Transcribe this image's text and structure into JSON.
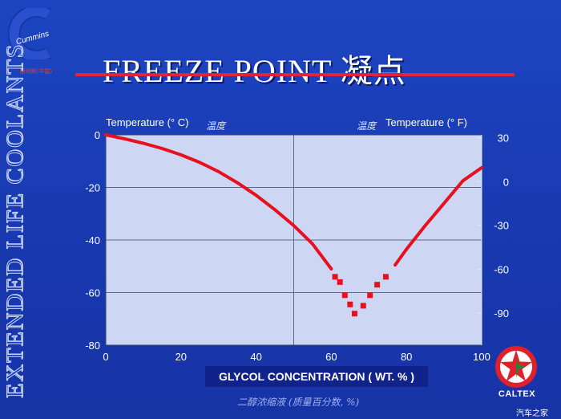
{
  "slide": {
    "title": "FREEZE POINT 凝点",
    "side_title": "EXTENDED LIFE COOLANTS",
    "brand_left_sub": "康明斯(中国)",
    "brand_right": "CALTEX",
    "watermark": "汽车之家",
    "colors": {
      "background": "#1a3cb4",
      "accent_line": "#e0243a",
      "curve": "#e8101e",
      "plot_area": "#cdd6f2"
    }
  },
  "chart_data": {
    "type": "line",
    "xlabel": "GLYCOL CONCENTRATION ( WT. % )",
    "xlabel_cn": "二醇浓缩液 (质量百分数, %)",
    "ylabel_left": "Temperature (° C)",
    "ylabel_left_cn": "温度",
    "ylabel_right": "Temperature (° F)",
    "ylabel_right_cn": "温度",
    "xlim": [
      0,
      100
    ],
    "ylim": [
      -80,
      0
    ],
    "x_ticks": [
      "0",
      "20",
      "40",
      "60",
      "80",
      "100"
    ],
    "y_ticks_left": [
      "0",
      "-20",
      "-40",
      "-60",
      "-80"
    ],
    "y_ticks_right": [
      "30",
      "0",
      "-30",
      "-60",
      "-90"
    ],
    "y_ticks_right_values_c": [
      -1.1,
      -17.8,
      -34.4,
      -51.1,
      -67.8
    ],
    "grid": true,
    "series": [
      {
        "style": "solid-left",
        "x": [
          0,
          5,
          10,
          15,
          20,
          25,
          30,
          35,
          40,
          45,
          50,
          55,
          60
        ],
        "y": [
          0,
          -1.5,
          -3.2,
          -5.2,
          -7.6,
          -10.5,
          -14.0,
          -18.2,
          -23.0,
          -28.5,
          -34.5,
          -41.5,
          -51.0
        ]
      },
      {
        "style": "markers",
        "x": [
          61,
          62.3,
          63.6,
          65,
          66.2,
          68.5,
          70.3,
          72.2,
          74.5
        ],
        "y": [
          -54,
          -56,
          -61,
          -64.5,
          -68,
          -65,
          -61,
          -57,
          -54
        ]
      },
      {
        "style": "solid-right",
        "x": [
          77,
          80,
          85,
          90,
          95,
          100
        ],
        "y": [
          -49.5,
          -43.5,
          -34.5,
          -26,
          -17.5,
          -12.5
        ]
      }
    ]
  }
}
